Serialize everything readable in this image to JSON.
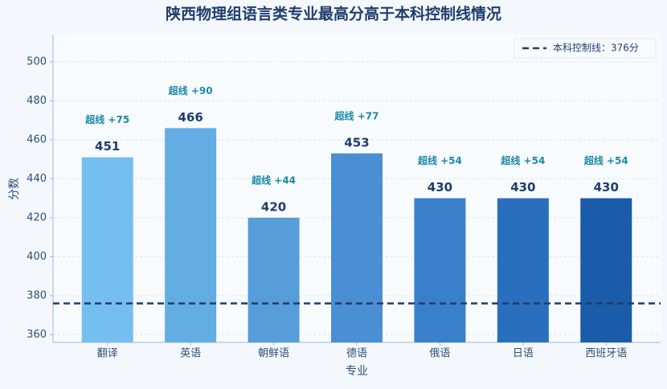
{
  "chart_data": {
    "type": "bar",
    "title": "陕西物理组语言类专业最高分高于本科控制线情况",
    "x_label": "专业",
    "y_label": "分数",
    "categories": [
      "翻译",
      "英语",
      "朝鲜语",
      "德语",
      "俄语",
      "日语",
      "西班牙语"
    ],
    "values": [
      451,
      466,
      420,
      453,
      430,
      430,
      430
    ],
    "colors": [
      "#74bfef",
      "#62ade4",
      "#569dda",
      "#4a8fd4",
      "#3880ca",
      "#2a6fbe",
      "#1a5ca9"
    ],
    "annotations": [
      "超线 +75",
      "超线 +90",
      "超线 +44",
      "超线 +77",
      "超线 +54",
      "超线 +54",
      "超线 +54"
    ],
    "reference_line": {
      "value": 376,
      "label": "本科控制线：376分",
      "color": "#1f3d6d"
    },
    "ylim": [
      356,
      514
    ],
    "yticks": [
      360,
      380,
      400,
      420,
      440,
      460,
      480,
      500
    ],
    "grid": true,
    "legend": "upper right"
  }
}
